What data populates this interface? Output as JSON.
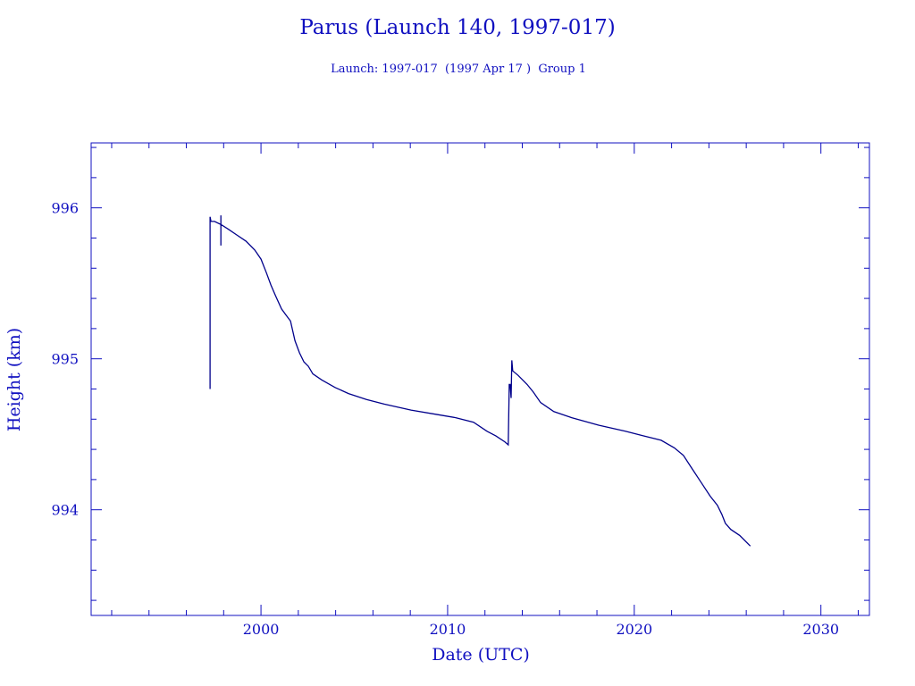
{
  "chart_data": {
    "type": "line",
    "title": "Parus (Launch 140, 1997-017)",
    "subtitle": "Launch: 1997-017  (1997 Apr 17 )  Group 1",
    "xlabel": "Date (UTC)",
    "ylabel": "Height (km)",
    "xlim": [
      1990.9,
      2032.6
    ],
    "ylim": [
      993.3,
      996.43
    ],
    "xticks": [
      2000,
      2010,
      2020,
      2030
    ],
    "xtick_labels": [
      "2000",
      "2010",
      "2020",
      "2030"
    ],
    "yticks": [
      994,
      995,
      996
    ],
    "ytick_labels": [
      "994",
      "995",
      "996"
    ],
    "x_minor_step": 2,
    "y_minor_step": 0.2,
    "grid": false,
    "color": "#00008b",
    "series": [
      {
        "name": "Height",
        "points": [
          [
            1997.27,
            994.8
          ],
          [
            1997.27,
            995.94
          ],
          [
            1997.32,
            995.91
          ],
          [
            1997.51,
            995.91
          ],
          [
            1997.85,
            995.89
          ],
          [
            1997.85,
            995.95
          ],
          [
            1997.85,
            995.75
          ],
          [
            1997.85,
            995.89
          ],
          [
            1998.23,
            995.86
          ],
          [
            1998.71,
            995.82
          ],
          [
            1999.19,
            995.78
          ],
          [
            1999.67,
            995.72
          ],
          [
            2000.0,
            995.66
          ],
          [
            2000.29,
            995.57
          ],
          [
            2000.53,
            995.49
          ],
          [
            2000.77,
            995.42
          ],
          [
            2001.1,
            995.33
          ],
          [
            2001.34,
            995.29
          ],
          [
            2001.58,
            995.25
          ],
          [
            2001.82,
            995.12
          ],
          [
            2002.06,
            995.04
          ],
          [
            2002.3,
            994.98
          ],
          [
            2002.54,
            994.95
          ],
          [
            2002.78,
            994.9
          ],
          [
            2003.25,
            994.86
          ],
          [
            2003.97,
            994.81
          ],
          [
            2004.69,
            994.77
          ],
          [
            2005.65,
            994.73
          ],
          [
            2006.6,
            994.7
          ],
          [
            2008.04,
            994.66
          ],
          [
            2009.47,
            994.63
          ],
          [
            2010.43,
            994.61
          ],
          [
            2011.39,
            994.58
          ],
          [
            2012.11,
            994.52
          ],
          [
            2012.58,
            994.49
          ],
          [
            2013.06,
            994.45
          ],
          [
            2013.25,
            994.43
          ],
          [
            2013.3,
            994.83
          ],
          [
            2013.35,
            994.83
          ],
          [
            2013.4,
            994.74
          ],
          [
            2013.44,
            994.99
          ],
          [
            2013.49,
            994.92
          ],
          [
            2013.78,
            994.89
          ],
          [
            2014.26,
            994.83
          ],
          [
            2014.59,
            994.78
          ],
          [
            2014.98,
            994.71
          ],
          [
            2015.69,
            994.65
          ],
          [
            2016.65,
            994.61
          ],
          [
            2018.09,
            994.56
          ],
          [
            2019.52,
            994.52
          ],
          [
            2020.48,
            994.49
          ],
          [
            2021.44,
            994.46
          ],
          [
            2022.15,
            994.41
          ],
          [
            2022.63,
            994.36
          ],
          [
            2023.11,
            994.27
          ],
          [
            2023.59,
            994.18
          ],
          [
            2024.07,
            994.09
          ],
          [
            2024.45,
            994.03
          ],
          [
            2024.69,
            993.97
          ],
          [
            2024.88,
            993.91
          ],
          [
            2025.17,
            993.87
          ],
          [
            2025.65,
            993.83
          ],
          [
            2026.22,
            993.76
          ]
        ]
      }
    ]
  }
}
